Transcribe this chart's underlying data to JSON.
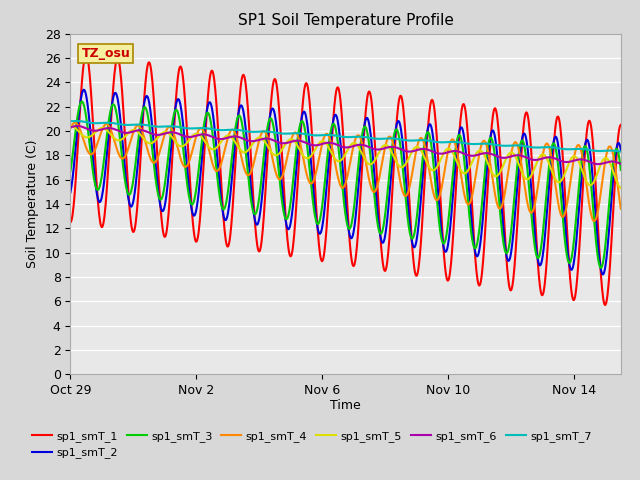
{
  "title": "SP1 Soil Temperature Profile",
  "xlabel": "Time",
  "ylabel": "Soil Temperature (C)",
  "ylim": [
    0,
    28
  ],
  "yticks": [
    0,
    2,
    4,
    6,
    8,
    10,
    12,
    14,
    16,
    18,
    20,
    22,
    24,
    26,
    28
  ],
  "xtick_labels": [
    "Oct 29",
    "Nov 2",
    "Nov 6",
    "Nov 10",
    "Nov 14"
  ],
  "xtick_positions": [
    0,
    4,
    8,
    12,
    16
  ],
  "total_days": 17.5,
  "annotation_text": "TZ_osu",
  "annotation_box_color": "#f5f0a0",
  "annotation_text_color": "#cc0000",
  "annotation_border_color": "#aa8800",
  "fig_bg_color": "#d8d8d8",
  "plot_bg_color": "#e8e8e8",
  "grid_color": "#ffffff",
  "series": [
    {
      "label": "sp1_smT_1",
      "color": "#ff0000",
      "lw": 1.5
    },
    {
      "label": "sp1_smT_2",
      "color": "#0000dd",
      "lw": 1.5
    },
    {
      "label": "sp1_smT_3",
      "color": "#00cc00",
      "lw": 1.5
    },
    {
      "label": "sp1_smT_4",
      "color": "#ff8800",
      "lw": 1.5
    },
    {
      "label": "sp1_smT_5",
      "color": "#dddd00",
      "lw": 1.5
    },
    {
      "label": "sp1_smT_6",
      "color": "#aa00aa",
      "lw": 1.5
    },
    {
      "label": "sp1_smT_7",
      "color": "#00bbbb",
      "lw": 1.5
    }
  ]
}
